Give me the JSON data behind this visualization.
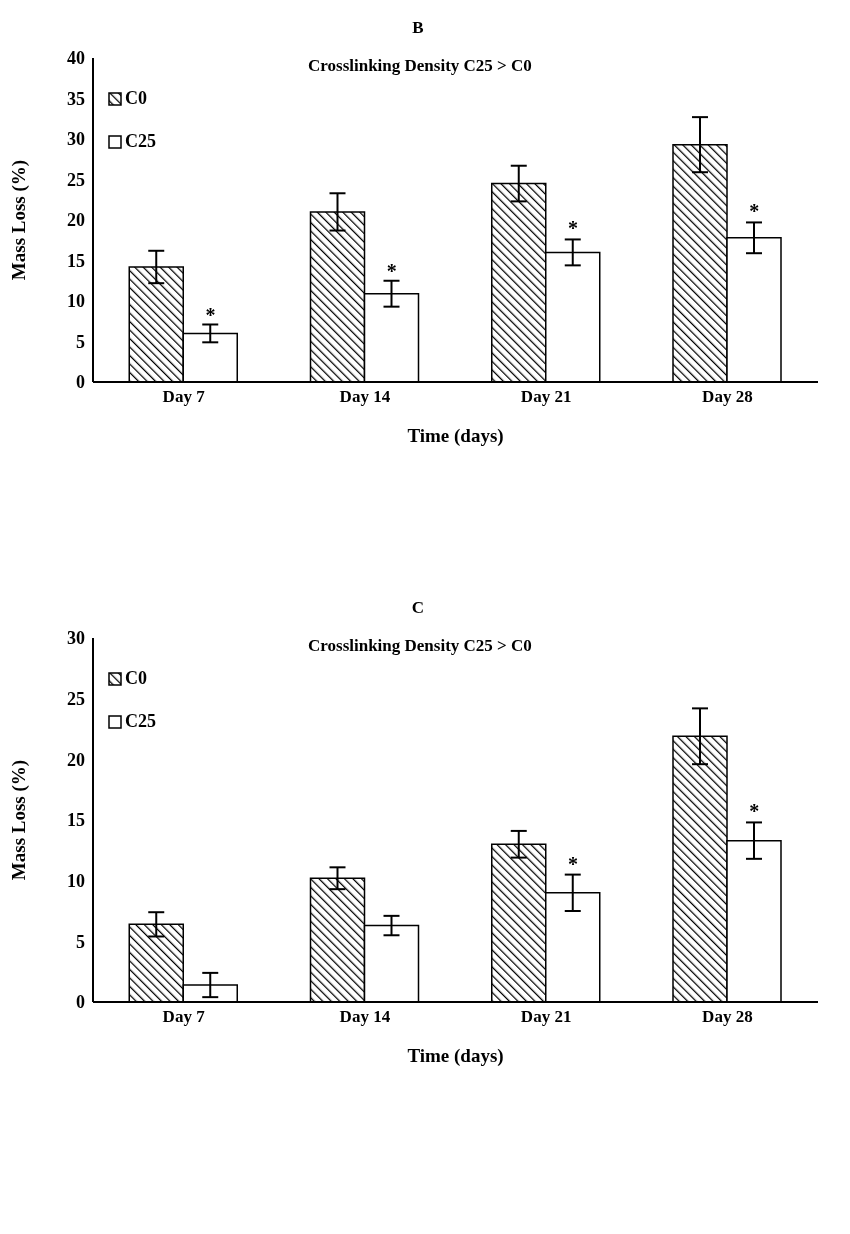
{
  "chart_data": [
    {
      "type": "bar",
      "title": "B",
      "subtitle": "Crosslinking Density C25 > C0",
      "xlabel": "Time (days)",
      "ylabel": "Mass Loss (%)",
      "categories": [
        "Day 7",
        "Day 14",
        "Day 21",
        "Day 28"
      ],
      "series": [
        {
          "name": "C0",
          "color": "#000000",
          "values": [
            14.2,
            21.0,
            24.5,
            29.3
          ],
          "errors": [
            2.0,
            2.3,
            2.2,
            3.4
          ]
        },
        {
          "name": "C25",
          "color": "#ffffff",
          "values": [
            6.0,
            10.9,
            16.0,
            17.8
          ],
          "errors": [
            1.1,
            1.6,
            1.6,
            1.9
          ]
        }
      ],
      "ylim": [
        0,
        40
      ],
      "yticks": [
        0,
        5,
        10,
        15,
        20,
        25,
        30,
        35,
        40
      ],
      "grid": false,
      "legend": "top left",
      "annotations": [
        {
          "text": "*",
          "x": "Day 7",
          "y": 6.9
        },
        {
          "text": "*",
          "x": "Day 14",
          "y": 12.3
        },
        {
          "text": "*",
          "x": "Day 21",
          "y": 17.6
        },
        {
          "text": "*",
          "x": "Day 28",
          "y": 19.7
        }
      ]
    },
    {
      "type": "bar",
      "title": "C",
      "subtitle": "Crosslinking Density C25 > C0",
      "xlabel": "Time (days)",
      "ylabel": "Mass Loss (%)",
      "categories": [
        "Day 7",
        "Day 14",
        "Day 21",
        "Day 28"
      ],
      "series": [
        {
          "name": "C0",
          "color": "#000000",
          "values": [
            6.4,
            10.2,
            13.0,
            21.9
          ],
          "errors": [
            1.0,
            0.9,
            1.1,
            2.3
          ]
        },
        {
          "name": "C25",
          "color": "#ffffff",
          "values": [
            1.4,
            6.3,
            9.0,
            13.3
          ],
          "errors": [
            1.0,
            0.8,
            1.5,
            1.5
          ]
        }
      ],
      "ylim": [
        0,
        30
      ],
      "yticks": [
        0,
        5,
        10,
        15,
        20,
        25,
        30
      ],
      "grid": false,
      "legend": "top left",
      "annotations": [
        {
          "text": "*",
          "x": "Day 21",
          "y": 10.5
        },
        {
          "text": "*",
          "x": "Day 28",
          "y": 14.8
        }
      ]
    }
  ]
}
